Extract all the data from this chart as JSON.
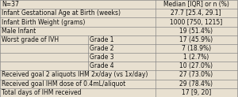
{
  "header_left": "N=37",
  "header_right": "Median [IQR] or n (%)",
  "rows": [
    {
      "label": "Infant Gestational Age at Birth (weeks)",
      "sub": "",
      "value": "27.7 [25.4, 29.1]"
    },
    {
      "label": "Infant Birth Weight (grams)",
      "sub": "",
      "value": "1000 [750, 1215]"
    },
    {
      "label": "Male Infant",
      "sub": "",
      "value": "19 (51.4%)"
    },
    {
      "label": "Worst grade of IVH",
      "sub": "Grade 1",
      "value": "17 (45.9%)"
    },
    {
      "label": "",
      "sub": "Grade 2",
      "value": "7 (18.9%)"
    },
    {
      "label": "",
      "sub": "Grade 3",
      "value": "1 (2.7%)"
    },
    {
      "label": "",
      "sub": "Grade 4",
      "value": "10 (27.0%)"
    },
    {
      "label": "Received goal 2 aliquots IHM 2x/day (vs 1x/day)",
      "sub": "",
      "value": "27 (73.0%)"
    },
    {
      "label": "Received goal IHM dose of 0.4mL/aliquot",
      "sub": "",
      "value": "29 (78.4%)"
    },
    {
      "label": "Total days of IHM received",
      "sub": "",
      "value": "17 [9, 20]"
    }
  ],
  "col_split": 0.655,
  "sub_split": 0.37,
  "bg_color": "#e8e0d0",
  "line_color": "#888888",
  "font_size": 5.5,
  "text_color": "#111111",
  "fig_width": 3.0,
  "fig_height": 1.23,
  "dpi": 100
}
